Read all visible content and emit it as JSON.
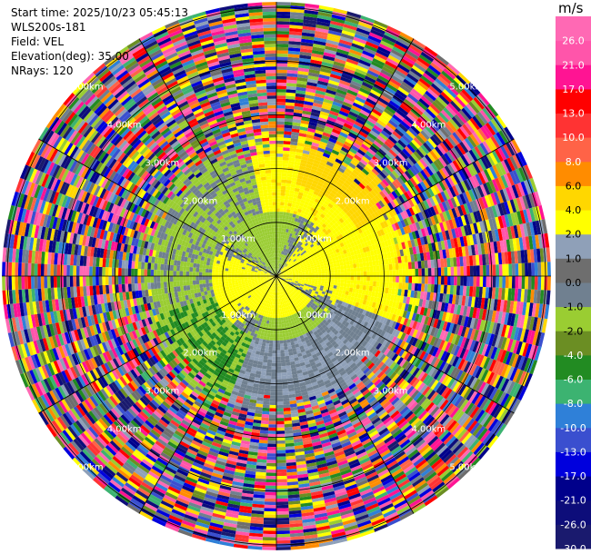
{
  "header": {
    "start_time": "Start time: 2025/10/23 05:45:13",
    "station": "WLS200s-181",
    "field": "Field: VEL",
    "elevation": "Elevation(deg): 35.00",
    "nrays": "NRays: 120"
  },
  "colorbar": {
    "unit": "m/s",
    "levels": [
      "-30.0",
      "-26.0",
      "-21.0",
      "-17.0",
      "-13.0",
      "-10.0",
      "-8.0",
      "-6.0",
      "-4.0",
      "-2.0",
      "-1.0",
      "0.0",
      "1.0",
      "2.0",
      "4.0",
      "6.0",
      "8.0",
      "10.0",
      "13.0",
      "17.0",
      "21.0",
      "26.0"
    ],
    "colors": [
      "#1a1a6e",
      "#0d0d7a",
      "#00008b",
      "#0000dd",
      "#3a4fcf",
      "#2f80d8",
      "#3cb371",
      "#228b22",
      "#6b8e23",
      "#9acd32",
      "#708090",
      "#6e6e6e",
      "#8fa0b8",
      "#ffff00",
      "#ffd700",
      "#ff8c00",
      "#ff6347",
      "#ff3333",
      "#ff0000",
      "#ff1493",
      "#ff55aa",
      "#ff69b4"
    ]
  },
  "chart_data": {
    "type": "heatmap",
    "projection": "polar PPI",
    "field": "VEL",
    "units": "m/s",
    "nrays": 120,
    "elevation_deg": 35.0,
    "range_rings_km": [
      1.0,
      2.0,
      3.0,
      4.0,
      5.0
    ],
    "ring_labels": [
      "1.00km",
      "2.00km",
      "3.00km",
      "4.00km",
      "5.00km"
    ],
    "max_range_km": 5.1,
    "valid_range_km": 2.2,
    "near_field": "mostly -1.0 to 2.0 m/s (gray, yellow-green, yellow)",
    "far_field": "noisy, all colorbar values"
  }
}
